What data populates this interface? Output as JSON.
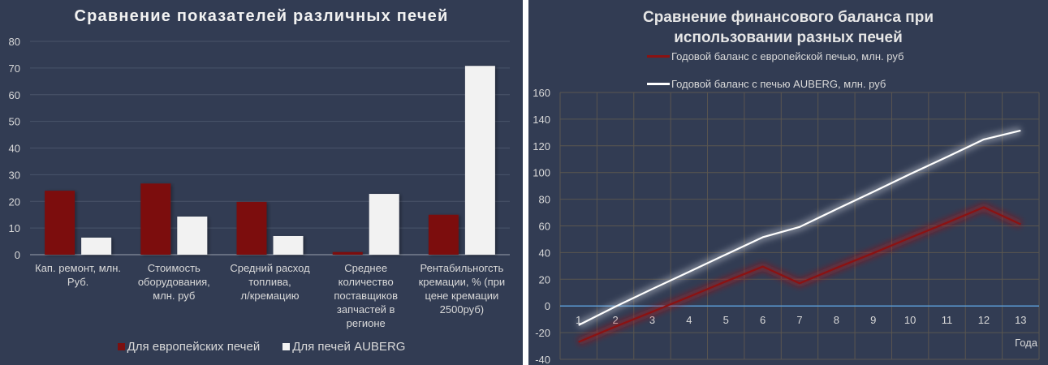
{
  "chart_data": [
    {
      "type": "bar",
      "title": "Сравнение показателей различных печей",
      "categories": [
        "Кап. ремонт, млн. Руб.",
        "Стоимость оборудования, млн. руб",
        "Средний расход топлива, л/кремацию",
        "Среднее количество поставщиков запчастей в регионе",
        "Рентабильногсть кремации, % (при цене кремации 2500руб)"
      ],
      "category_lines": [
        [
          "Кап. ремонт, млн.",
          "Руб."
        ],
        [
          "Стоимость",
          "оборудования,",
          "млн. руб"
        ],
        [
          "Средний расход",
          "топлива,",
          "л/кремацию"
        ],
        [
          "Среднее",
          "количество",
          "поставщиков",
          "запчастей в",
          "регионе"
        ],
        [
          "Рентабильногсть",
          "кремации, % (при",
          "цене кремации",
          "2500руб)"
        ]
      ],
      "series": [
        {
          "name": "Для европейских печей",
          "color": "#7b1010",
          "values": [
            24,
            26.7,
            19.8,
            1,
            15
          ]
        },
        {
          "name": "Для печей AUBERG",
          "color": "#f2f2f2",
          "values": [
            6.4,
            14.3,
            7,
            22.8,
            70.8
          ]
        }
      ],
      "xlabel": "",
      "ylabel": "",
      "ylim": [
        0,
        80
      ],
      "yticks": [
        0,
        10,
        20,
        30,
        40,
        50,
        60,
        70,
        80
      ],
      "grid": true,
      "legend_position": "bottom"
    },
    {
      "type": "line",
      "title": "Сравнение финансового баланса при использовании разных печей",
      "title_lines": [
        "Сравнение финансового баланса при",
        "использовании разных печей"
      ],
      "x": [
        1,
        2,
        3,
        4,
        5,
        6,
        7,
        8,
        9,
        10,
        11,
        12,
        13
      ],
      "series": [
        {
          "name": "Годовой баланс с европейской печью, млн. руб",
          "color": "#8b1212",
          "values": [
            -27,
            -15.5,
            -4.4,
            6.9,
            18.4,
            29.5,
            17,
            28.5,
            39.6,
            51.1,
            62.4,
            74,
            61.2
          ]
        },
        {
          "name": "Годовой баланс с печью AUBERG, млн. руб",
          "color": "#ffffff",
          "values": [
            -14.4,
            -0.5,
            12.7,
            25.6,
            38.6,
            51.5,
            59.2,
            72.5,
            85.5,
            98.8,
            111.7,
            124.8,
            131.5
          ]
        }
      ],
      "xlabel": "Года",
      "ylabel": "",
      "ylim": [
        -40,
        160
      ],
      "yticks": [
        -40,
        -20,
        0,
        20,
        40,
        60,
        80,
        100,
        120,
        140,
        160
      ],
      "grid": true,
      "zero_line_color": "#5b9bd5",
      "legend_position": "top"
    }
  ],
  "colors": {
    "background": "#323c53",
    "gridline_left": "#4a546a",
    "gridline_right": "#5a5650",
    "text": "#d9d9d9",
    "separator": "#ffffff"
  }
}
